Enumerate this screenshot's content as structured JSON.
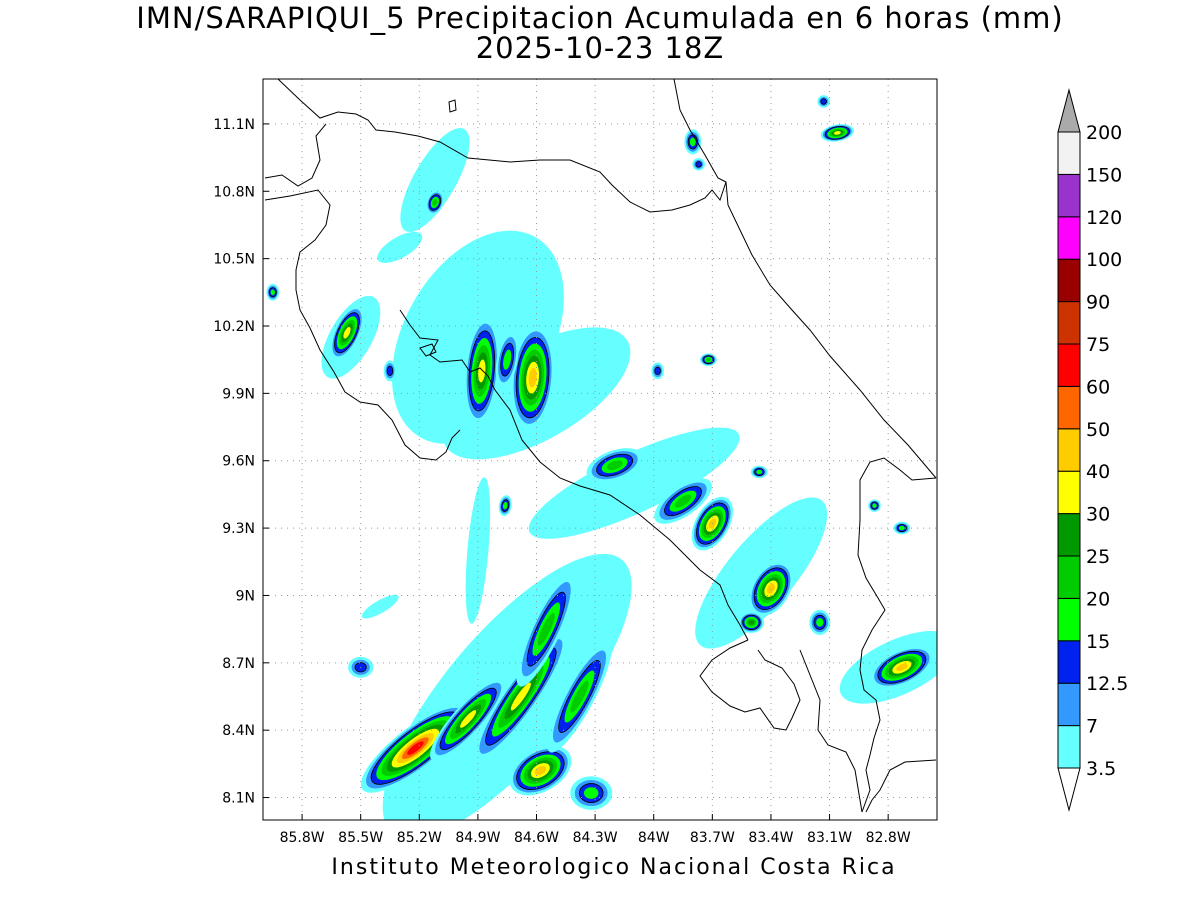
{
  "title": "IMN/SARAPIQUI_5 Precipitacion Acumulada en 6 horas (mm)",
  "subtitle": "2025-10-23 18Z",
  "credit": "Instituto Meteorologico Nacional Costa Rica",
  "map": {
    "x_ticks": [
      {
        "lon": -85.8,
        "label": "85.8W"
      },
      {
        "lon": -85.5,
        "label": "85.5W"
      },
      {
        "lon": -85.2,
        "label": "85.2W"
      },
      {
        "lon": -84.9,
        "label": "84.9W"
      },
      {
        "lon": -84.6,
        "label": "84.6W"
      },
      {
        "lon": -84.3,
        "label": "84.3W"
      },
      {
        "lon": -84.0,
        "label": "84W"
      },
      {
        "lon": -83.7,
        "label": "83.7W"
      },
      {
        "lon": -83.4,
        "label": "83.4W"
      },
      {
        "lon": -83.1,
        "label": "83.1W"
      },
      {
        "lon": -82.8,
        "label": "82.8W"
      }
    ],
    "y_ticks": [
      {
        "lat": 11.1,
        "label": "11.1N"
      },
      {
        "lat": 10.8,
        "label": "10.8N"
      },
      {
        "lat": 10.5,
        "label": "10.5N"
      },
      {
        "lat": 10.2,
        "label": "10.2N"
      },
      {
        "lat": 9.9,
        "label": "9.9N"
      },
      {
        "lat": 9.6,
        "label": "9.6N"
      },
      {
        "lat": 9.3,
        "label": "9.3N"
      },
      {
        "lat": 9.0,
        "label": "9N"
      },
      {
        "lat": 8.7,
        "label": "8.7N"
      },
      {
        "lat": 8.4,
        "label": "8.4N"
      },
      {
        "lat": 8.1,
        "label": "8.1N"
      }
    ],
    "lon_range": [
      -86.0,
      -82.55
    ],
    "lat_range": [
      8.0,
      11.3
    ],
    "grid": true
  },
  "colorbar": {
    "levels": [
      {
        "label": "3.5",
        "color": "#66ffff"
      },
      {
        "label": "7",
        "color": "#3399ff"
      },
      {
        "label": "12.5",
        "color": "#0022ee"
      },
      {
        "label": "15",
        "color": "#00ff00"
      },
      {
        "label": "20",
        "color": "#00cc00"
      },
      {
        "label": "25",
        "color": "#009900"
      },
      {
        "label": "30",
        "color": "#ffff00"
      },
      {
        "label": "40",
        "color": "#ffcc00"
      },
      {
        "label": "50",
        "color": "#ff6600"
      },
      {
        "label": "60",
        "color": "#ff0000"
      },
      {
        "label": "75",
        "color": "#cc3300"
      },
      {
        "label": "90",
        "color": "#990000"
      },
      {
        "label": "100",
        "color": "#ff00ff"
      },
      {
        "label": "120",
        "color": "#9933cc"
      },
      {
        "label": "150",
        "color": "#f2f2f2"
      },
      {
        "label": "200",
        "color": "#aaaaaa"
      }
    ]
  },
  "rain_cells": [
    {
      "lon": -85.22,
      "lat": 8.32,
      "rx": 0.32,
      "ry": 0.1,
      "rot": -38,
      "peak": 10
    },
    {
      "lon": -84.95,
      "lat": 8.45,
      "rx": 0.26,
      "ry": 0.07,
      "rot": -48,
      "peak": 7
    },
    {
      "lon": -84.68,
      "lat": 8.55,
      "rx": 0.38,
      "ry": 0.08,
      "rot": -55,
      "peak": 7
    },
    {
      "lon": -84.58,
      "lat": 8.22,
      "rx": 0.16,
      "ry": 0.1,
      "rot": -30,
      "peak": 8
    },
    {
      "lon": -84.55,
      "lat": 8.85,
      "rx": 0.3,
      "ry": 0.07,
      "rot": -65,
      "peak": 5
    },
    {
      "lon": -84.38,
      "lat": 8.55,
      "rx": 0.3,
      "ry": 0.07,
      "rot": -62,
      "peak": 5
    },
    {
      "lon": -84.32,
      "lat": 8.12,
      "rx": 0.1,
      "ry": 0.08,
      "rot": 0,
      "peak": 4
    },
    {
      "lon": -85.5,
      "lat": 8.68,
      "rx": 0.06,
      "ry": 0.05,
      "rot": 0,
      "peak": 3
    },
    {
      "lon": -84.88,
      "lat": 10.0,
      "rx": 0.26,
      "ry": 0.08,
      "rot": -85,
      "peak": 7
    },
    {
      "lon": -84.62,
      "lat": 9.97,
      "rx": 0.25,
      "ry": 0.1,
      "rot": -85,
      "peak": 8
    },
    {
      "lon": -84.75,
      "lat": 10.05,
      "rx": 0.14,
      "ry": 0.05,
      "rot": -80,
      "peak": 4
    },
    {
      "lon": -85.57,
      "lat": 10.17,
      "rx": 0.14,
      "ry": 0.06,
      "rot": -65,
      "peak": 7
    },
    {
      "lon": -85.12,
      "lat": 10.75,
      "rx": 0.06,
      "ry": 0.04,
      "rot": -70,
      "peak": 5
    },
    {
      "lon": -84.2,
      "lat": 9.58,
      "rx": 0.14,
      "ry": 0.07,
      "rot": -20,
      "peak": 5
    },
    {
      "lon": -83.85,
      "lat": 9.42,
      "rx": 0.16,
      "ry": 0.07,
      "rot": -35,
      "peak": 5
    },
    {
      "lon": -83.7,
      "lat": 9.32,
      "rx": 0.14,
      "ry": 0.08,
      "rot": -60,
      "peak": 8
    },
    {
      "lon": -83.4,
      "lat": 9.03,
      "rx": 0.14,
      "ry": 0.09,
      "rot": -60,
      "peak": 8
    },
    {
      "lon": -83.5,
      "lat": 8.88,
      "rx": 0.06,
      "ry": 0.05,
      "rot": 0,
      "peak": 6
    },
    {
      "lon": -83.15,
      "lat": 8.88,
      "rx": 0.05,
      "ry": 0.06,
      "rot": 0,
      "peak": 4
    },
    {
      "lon": -82.73,
      "lat": 8.68,
      "rx": 0.16,
      "ry": 0.08,
      "rot": -25,
      "peak": 8
    },
    {
      "lon": -83.06,
      "lat": 11.06,
      "rx": 0.08,
      "ry": 0.04,
      "rot": -10,
      "peak": 7
    },
    {
      "lon": -83.13,
      "lat": 11.2,
      "rx": 0.03,
      "ry": 0.03,
      "rot": 0,
      "peak": 3
    },
    {
      "lon": -83.8,
      "lat": 11.02,
      "rx": 0.04,
      "ry": 0.06,
      "rot": 0,
      "peak": 4
    },
    {
      "lon": -83.77,
      "lat": 10.92,
      "rx": 0.03,
      "ry": 0.03,
      "rot": 0,
      "peak": 3
    },
    {
      "lon": -83.72,
      "lat": 10.05,
      "rx": 0.04,
      "ry": 0.03,
      "rot": 0,
      "peak": 5
    },
    {
      "lon": -83.98,
      "lat": 10.0,
      "rx": 0.03,
      "ry": 0.04,
      "rot": 0,
      "peak": 3
    },
    {
      "lon": -82.87,
      "lat": 9.4,
      "rx": 0.03,
      "ry": 0.03,
      "rot": 0,
      "peak": 4
    },
    {
      "lon": -82.73,
      "lat": 9.3,
      "rx": 0.04,
      "ry": 0.03,
      "rot": 0,
      "peak": 4
    },
    {
      "lon": -83.46,
      "lat": 9.55,
      "rx": 0.04,
      "ry": 0.03,
      "rot": 0,
      "peak": 4
    },
    {
      "lon": -85.95,
      "lat": 10.35,
      "rx": 0.03,
      "ry": 0.04,
      "rot": 0,
      "peak": 4
    },
    {
      "lon": -85.35,
      "lat": 10.0,
      "rx": 0.03,
      "ry": 0.05,
      "rot": 0,
      "peak": 3
    },
    {
      "lon": -84.76,
      "lat": 9.4,
      "rx": 0.05,
      "ry": 0.03,
      "rot": -80,
      "peak": 4
    }
  ],
  "rain_bands": [
    {
      "lon": -84.75,
      "lat": 8.55,
      "rx": 0.85,
      "ry": 0.3,
      "rot": -50,
      "peak": 1
    },
    {
      "lon": -84.9,
      "lat": 10.15,
      "rx": 0.55,
      "ry": 0.35,
      "rot": -60,
      "peak": 1
    },
    {
      "lon": -84.6,
      "lat": 9.9,
      "rx": 0.5,
      "ry": 0.22,
      "rot": -30,
      "peak": 1
    },
    {
      "lon": -84.1,
      "lat": 9.5,
      "rx": 0.55,
      "ry": 0.14,
      "rot": -25,
      "peak": 1
    },
    {
      "lon": -83.45,
      "lat": 9.1,
      "rx": 0.45,
      "ry": 0.16,
      "rot": -50,
      "peak": 1
    },
    {
      "lon": -82.75,
      "lat": 8.68,
      "rx": 0.3,
      "ry": 0.13,
      "rot": -25,
      "peak": 1
    },
    {
      "lon": -85.55,
      "lat": 10.15,
      "rx": 0.22,
      "ry": 0.1,
      "rot": -60,
      "peak": 1
    },
    {
      "lon": -85.12,
      "lat": 10.85,
      "rx": 0.28,
      "ry": 0.1,
      "rot": -60,
      "peak": 1
    },
    {
      "lon": -84.9,
      "lat": 9.2,
      "rx": 0.35,
      "ry": 0.05,
      "rot": -85,
      "peak": 1
    },
    {
      "lon": -85.3,
      "lat": 10.55,
      "rx": 0.12,
      "ry": 0.05,
      "rot": -30,
      "peak": 1
    },
    {
      "lon": -85.4,
      "lat": 8.95,
      "rx": 0.1,
      "ry": 0.03,
      "rot": -30,
      "peak": 1
    }
  ]
}
